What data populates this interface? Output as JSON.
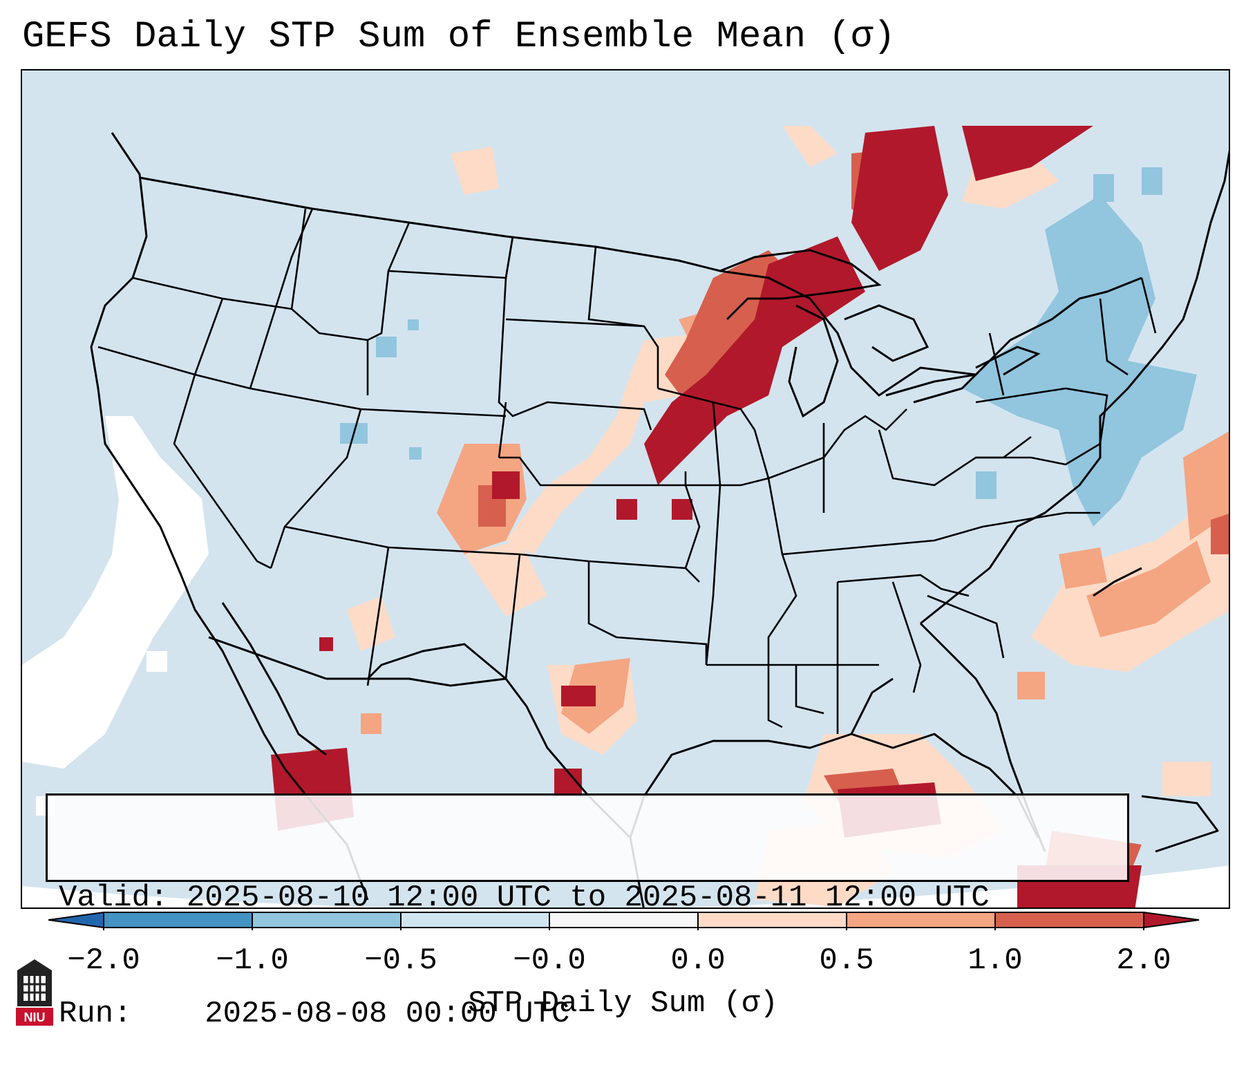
{
  "title": "GEFS Daily STP Sum of Ensemble Mean (σ)",
  "info": {
    "valid_label": "Valid:",
    "valid_value": "2025-08-10 12:00 UTC to 2025-08-11 12:00 UTC",
    "run_label": "Run:",
    "run_value": "2025-08-08 00:00 UTC"
  },
  "colorbar": {
    "label": "STP Daily Sum (σ)",
    "ticks": [
      "−2.0",
      "−1.0",
      "−0.5",
      "−0.0",
      "0.0",
      "0.5",
      "1.0",
      "2.0"
    ],
    "colors": [
      "#4393c3",
      "#92c5de",
      "#d1e5f0",
      "#f7f7f7",
      "#fddbc7",
      "#f4a582",
      "#d6604d",
      "#b2182b"
    ],
    "extend_low_color": "#2166ac",
    "extend_high_color": "#b2182b"
  },
  "logo": {
    "text": "NIU"
  },
  "map_colors": {
    "background": "#d3e4ef",
    "white": "#ffffff",
    "neg_light": "#92c5de",
    "pos_light": "#fddbc7",
    "pos_mid": "#f4a582",
    "pos_high": "#d6604d",
    "pos_max": "#b2182b",
    "boundary": "#000000"
  }
}
